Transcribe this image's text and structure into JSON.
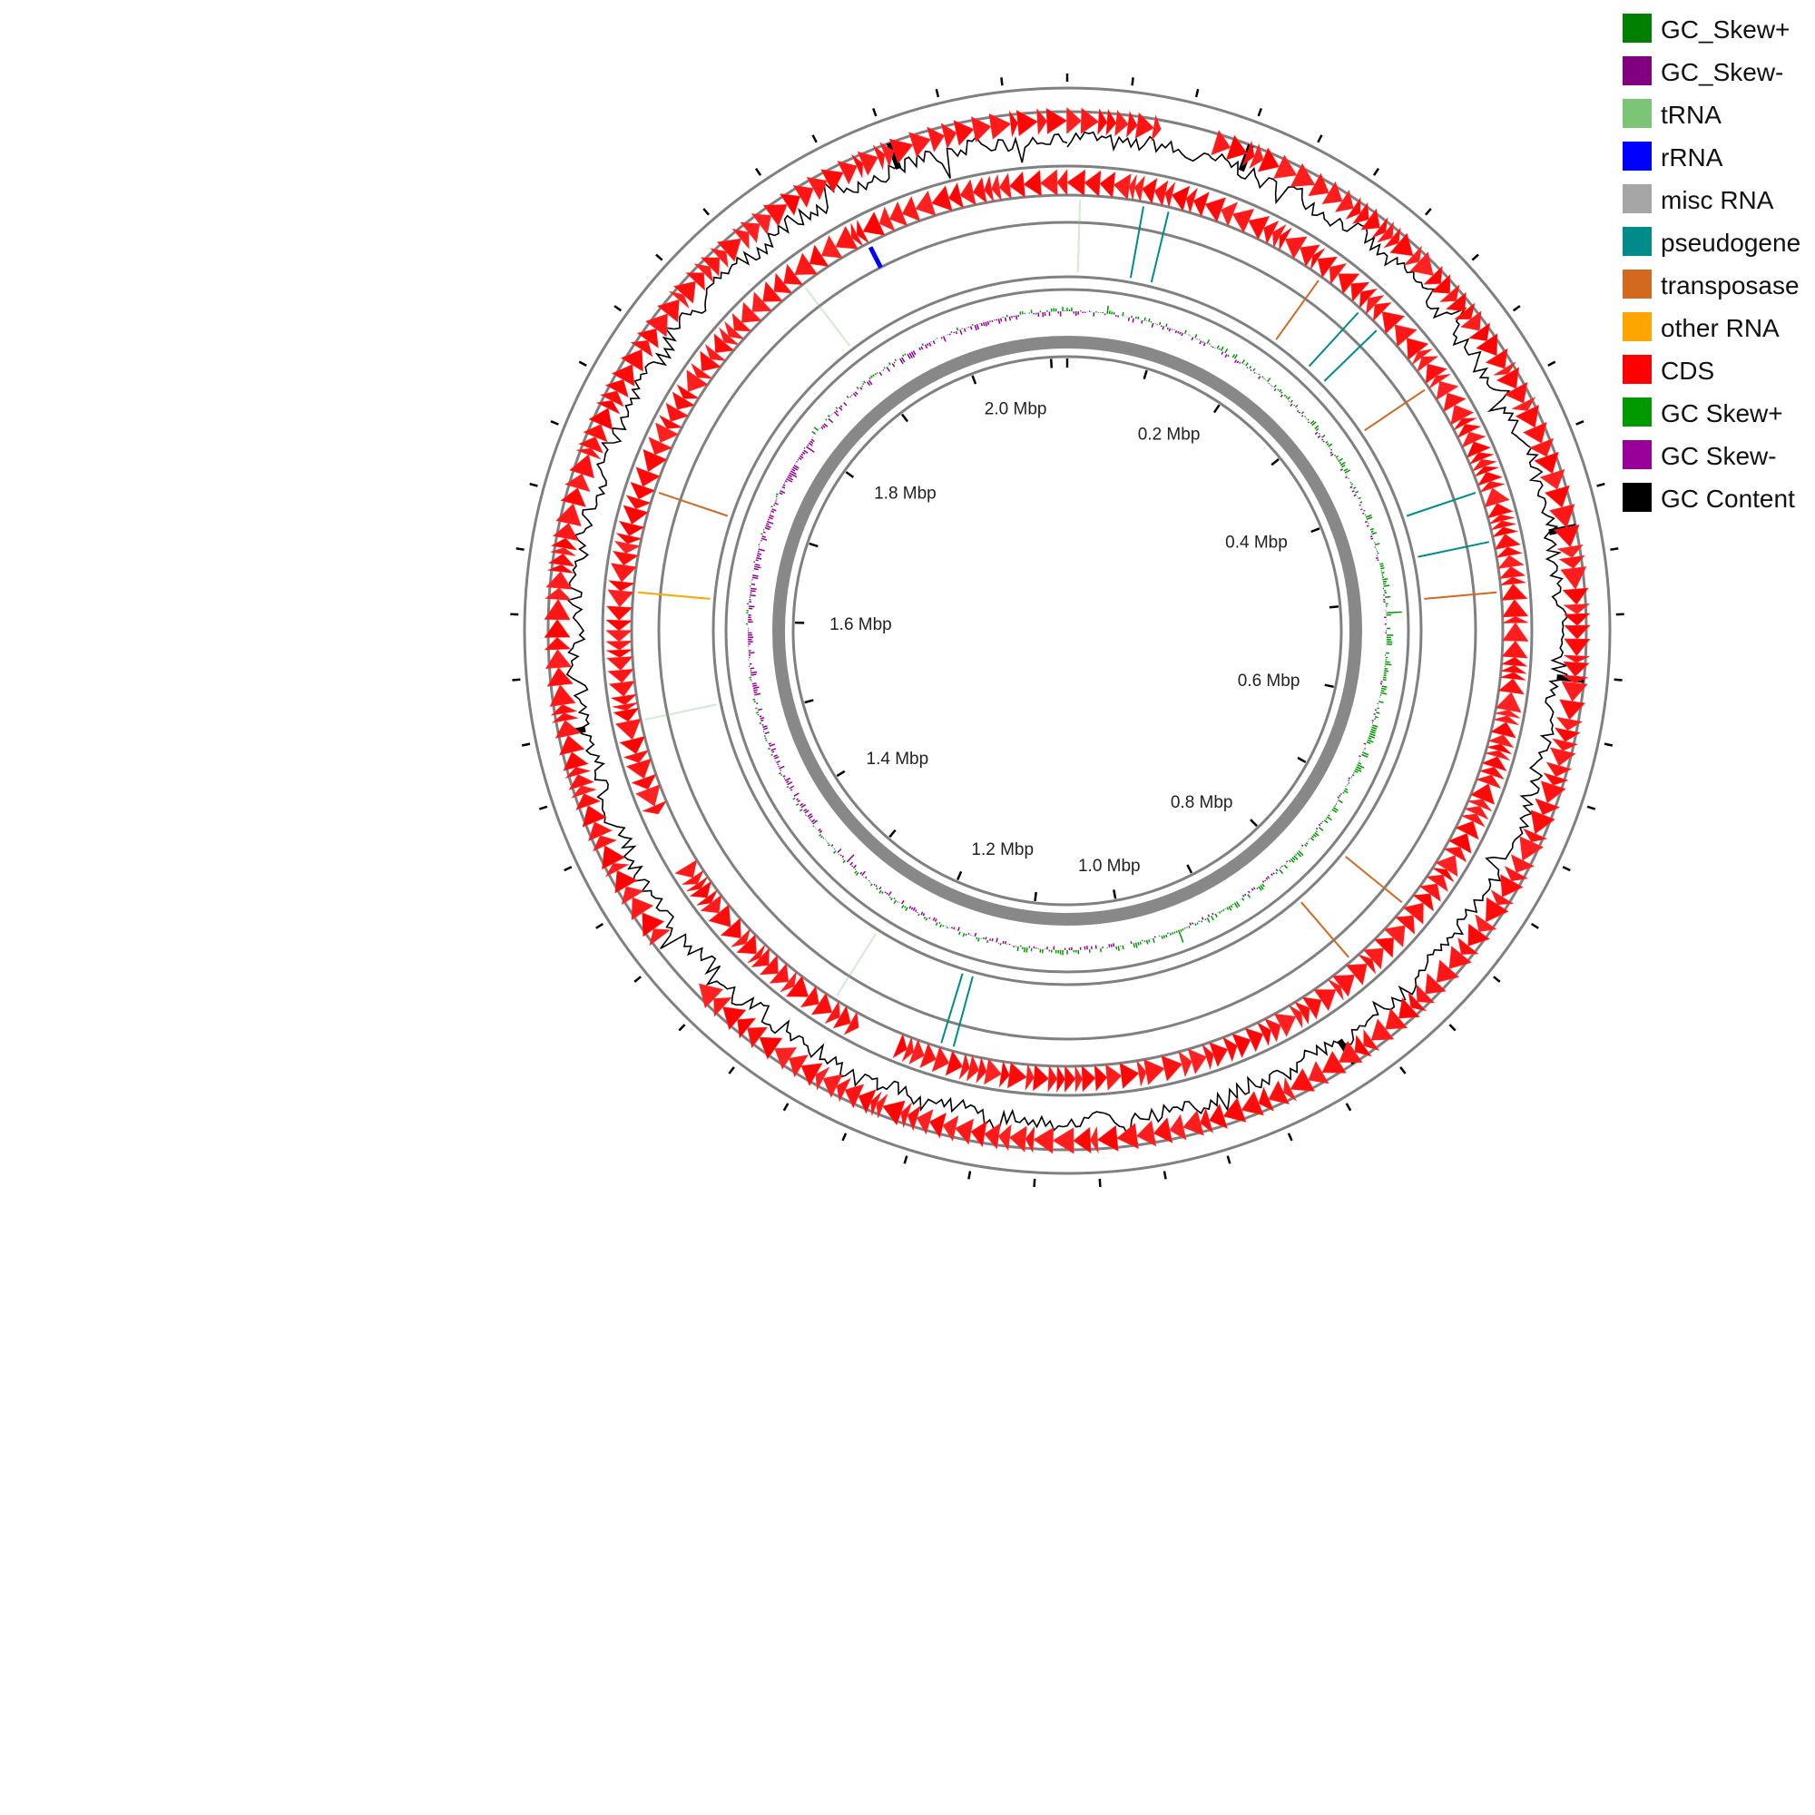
{
  "chart_data": {
    "type": "circular-genome-map",
    "genome_length_mbp": 2.12,
    "tick_labels": [
      {
        "mbp": 0.2,
        "label": "0.2 Mbp"
      },
      {
        "mbp": 0.4,
        "label": "0.4 Mbp"
      },
      {
        "mbp": 0.6,
        "label": "0.6 Mbp"
      },
      {
        "mbp": 0.8,
        "label": "0.8 Mbp"
      },
      {
        "mbp": 1.0,
        "label": "1.0 Mbp"
      },
      {
        "mbp": 1.2,
        "label": "1.2 Mbp"
      },
      {
        "mbp": 1.4,
        "label": "1.4 Mbp"
      },
      {
        "mbp": 1.6,
        "label": "1.6 Mbp"
      },
      {
        "mbp": 1.8,
        "label": "1.8 Mbp"
      },
      {
        "mbp": 2.0,
        "label": "2.0 Mbp"
      }
    ],
    "rna_features": [
      {
        "type": "rRNA",
        "mbp": 1.96
      },
      {
        "type": "pseudogene",
        "mbp": 0.06
      },
      {
        "type": "pseudogene",
        "mbp": 0.08
      },
      {
        "type": "transposase",
        "mbp": 0.21
      },
      {
        "type": "pseudogene",
        "mbp": 0.25
      },
      {
        "type": "pseudogene",
        "mbp": 0.27
      },
      {
        "type": "transposase",
        "mbp": 0.33
      },
      {
        "type": "pseudogene",
        "mbp": 0.42
      },
      {
        "type": "pseudogene",
        "mbp": 0.46
      },
      {
        "type": "transposase",
        "mbp": 0.5
      },
      {
        "type": "transposase",
        "mbp": 0.76
      },
      {
        "type": "transposase",
        "mbp": 0.82
      },
      {
        "type": "pseudogene",
        "mbp": 1.15
      },
      {
        "type": "pseudogene",
        "mbp": 1.16
      },
      {
        "type": "transposase",
        "mbp": 1.7
      },
      {
        "type": "other RNA",
        "mbp": 1.62
      },
      {
        "type": "tRNA",
        "mbp": 0.01
      },
      {
        "type": "tRNA",
        "mbp": 1.9
      },
      {
        "type": "tRNA",
        "mbp": 1.25
      },
      {
        "type": "tRNA",
        "mbp": 1.52
      }
    ],
    "series": [
      {
        "name": "GC_Skew+",
        "color": "#008000"
      },
      {
        "name": "GC_Skew-",
        "color": "#800080"
      },
      {
        "name": "tRNA",
        "color": "#7cc576"
      },
      {
        "name": "rRNA",
        "color": "#0000ff"
      },
      {
        "name": "misc RNA",
        "color": "#a6a6a6"
      },
      {
        "name": "pseudogene",
        "color": "#008b8b"
      },
      {
        "name": "transposase",
        "color": "#d2691e"
      },
      {
        "name": "other RNA",
        "color": "#ffa500"
      },
      {
        "name": "CDS",
        "color": "#ff0000"
      },
      {
        "name": "GC Skew+",
        "color": "#009900"
      },
      {
        "name": "GC Skew-",
        "color": "#990099"
      },
      {
        "name": "GC Content",
        "color": "#000000"
      }
    ],
    "legend_position": "top-right"
  }
}
